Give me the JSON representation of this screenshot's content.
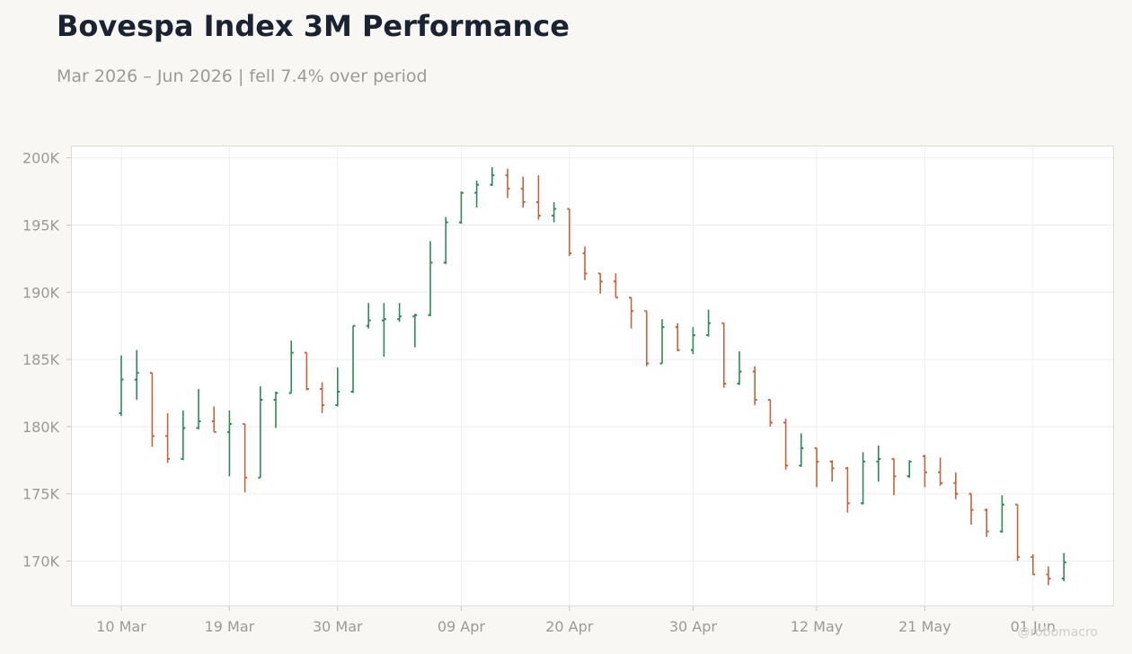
{
  "header": {
    "title": "Bovespa Index 3M Performance",
    "subtitle": "Mar 2026 – Jun 2026 | fell 7.4% over period"
  },
  "watermark": "@robomacro",
  "chart_data": {
    "type": "ohlc",
    "x_tick_labels": [
      "10 Mar",
      "19 Mar",
      "30 Mar",
      "09 Apr",
      "20 Apr",
      "30 Apr",
      "12 May",
      "21 May",
      "01 Jun"
    ],
    "y_tick_labels": [
      "170K",
      "175K",
      "180K",
      "185K",
      "190K",
      "195K",
      "200K"
    ],
    "y_ticks": [
      170000,
      175000,
      180000,
      185000,
      190000,
      195000,
      200000
    ],
    "ylim": [
      166500,
      201000
    ],
    "grid": true,
    "colors": {
      "up": "#2e8b57",
      "down": "#c8643c",
      "grid": "#eeeeec",
      "frame": "#dcdcd8"
    },
    "candles": [
      {
        "date": "10 Mar",
        "open": 181000,
        "high": 185300,
        "low": 180800,
        "close": 183500
      },
      {
        "date": "11 Mar",
        "open": 183500,
        "high": 185700,
        "low": 182000,
        "close": 184000
      },
      {
        "date": "12 Mar",
        "open": 184000,
        "high": 184000,
        "low": 178500,
        "close": 179300
      },
      {
        "date": "13 Mar",
        "open": 179300,
        "high": 181000,
        "low": 177300,
        "close": 177600
      },
      {
        "date": "16 Mar",
        "open": 177600,
        "high": 181200,
        "low": 177500,
        "close": 179900
      },
      {
        "date": "17 Mar",
        "open": 179900,
        "high": 182800,
        "low": 179800,
        "close": 180400
      },
      {
        "date": "18 Mar",
        "open": 180400,
        "high": 181500,
        "low": 179600,
        "close": 179600
      },
      {
        "date": "19 Mar",
        "open": 179600,
        "high": 181200,
        "low": 176300,
        "close": 180200
      },
      {
        "date": "20 Mar",
        "open": 180200,
        "high": 180200,
        "low": 175100,
        "close": 176200
      },
      {
        "date": "23 Mar",
        "open": 176200,
        "high": 183000,
        "low": 176200,
        "close": 182000
      },
      {
        "date": "24 Mar",
        "open": 182000,
        "high": 182600,
        "low": 179900,
        "close": 182500
      },
      {
        "date": "25 Mar",
        "open": 182500,
        "high": 186400,
        "low": 182500,
        "close": 185500
      },
      {
        "date": "26 Mar",
        "open": 185500,
        "high": 185500,
        "low": 182700,
        "close": 182800
      },
      {
        "date": "27 Mar",
        "open": 182800,
        "high": 183300,
        "low": 181000,
        "close": 181600
      },
      {
        "date": "30 Mar",
        "open": 181600,
        "high": 184400,
        "low": 181500,
        "close": 182600
      },
      {
        "date": "31 Mar",
        "open": 182600,
        "high": 187500,
        "low": 182500,
        "close": 187500
      },
      {
        "date": "01 Apr",
        "open": 187500,
        "high": 189200,
        "low": 187300,
        "close": 187900
      },
      {
        "date": "02 Apr",
        "open": 187900,
        "high": 189200,
        "low": 185200,
        "close": 188000
      },
      {
        "date": "03 Apr",
        "open": 188000,
        "high": 189200,
        "low": 187800,
        "close": 188200
      },
      {
        "date": "06 Apr",
        "open": 188200,
        "high": 188400,
        "low": 185900,
        "close": 188300
      },
      {
        "date": "07 Apr",
        "open": 188300,
        "high": 193800,
        "low": 188200,
        "close": 192200
      },
      {
        "date": "08 Apr",
        "open": 192200,
        "high": 195600,
        "low": 192100,
        "close": 195200
      },
      {
        "date": "09 Apr",
        "open": 195200,
        "high": 197500,
        "low": 195100,
        "close": 197400
      },
      {
        "date": "10 Apr",
        "open": 197400,
        "high": 198300,
        "low": 196300,
        "close": 198000
      },
      {
        "date": "13 Apr",
        "open": 198000,
        "high": 199300,
        "low": 197900,
        "close": 198700
      },
      {
        "date": "14 Apr",
        "open": 198700,
        "high": 199200,
        "low": 197000,
        "close": 197700
      },
      {
        "date": "15 Apr",
        "open": 197700,
        "high": 198600,
        "low": 196300,
        "close": 196700
      },
      {
        "date": "16 Apr",
        "open": 196700,
        "high": 198700,
        "low": 195400,
        "close": 195700
      },
      {
        "date": "17 Apr",
        "open": 195700,
        "high": 196700,
        "low": 195200,
        "close": 196200
      },
      {
        "date": "20 Apr",
        "open": 196200,
        "high": 196200,
        "low": 192700,
        "close": 192900
      },
      {
        "date": "21 Apr",
        "open": 192900,
        "high": 193400,
        "low": 190900,
        "close": 191400
      },
      {
        "date": "22 Apr",
        "open": 191400,
        "high": 191400,
        "low": 189900,
        "close": 190800
      },
      {
        "date": "23 Apr",
        "open": 190800,
        "high": 191400,
        "low": 189600,
        "close": 189600
      },
      {
        "date": "24 Apr",
        "open": 189600,
        "high": 189600,
        "low": 187300,
        "close": 188600
      },
      {
        "date": "27 Apr",
        "open": 188600,
        "high": 188600,
        "low": 184500,
        "close": 184700
      },
      {
        "date": "28 Apr",
        "open": 184700,
        "high": 188000,
        "low": 184700,
        "close": 187400
      },
      {
        "date": "29 Apr",
        "open": 187400,
        "high": 187700,
        "low": 185600,
        "close": 185700
      },
      {
        "date": "30 Apr",
        "open": 185700,
        "high": 187400,
        "low": 185400,
        "close": 186800
      },
      {
        "date": "01 May",
        "open": 186800,
        "high": 188700,
        "low": 186700,
        "close": 187700
      },
      {
        "date": "04 May",
        "open": 187700,
        "high": 187700,
        "low": 182900,
        "close": 183200
      },
      {
        "date": "05 May",
        "open": 183200,
        "high": 185600,
        "low": 183100,
        "close": 184100
      },
      {
        "date": "06 May",
        "open": 184100,
        "high": 184500,
        "low": 181600,
        "close": 182000
      },
      {
        "date": "07 May",
        "open": 182000,
        "high": 182000,
        "low": 180000,
        "close": 180300
      },
      {
        "date": "08 May",
        "open": 180300,
        "high": 180600,
        "low": 176800,
        "close": 177100
      },
      {
        "date": "11 May",
        "open": 177100,
        "high": 179500,
        "low": 177000,
        "close": 178400
      },
      {
        "date": "12 May",
        "open": 178400,
        "high": 178400,
        "low": 175500,
        "close": 177400
      },
      {
        "date": "13 May",
        "open": 177400,
        "high": 177500,
        "low": 175900,
        "close": 176900
      },
      {
        "date": "14 May",
        "open": 176900,
        "high": 177000,
        "low": 173600,
        "close": 174300
      },
      {
        "date": "15 May",
        "open": 174300,
        "high": 178100,
        "low": 174200,
        "close": 177400
      },
      {
        "date": "18 May",
        "open": 177400,
        "high": 178600,
        "low": 175900,
        "close": 177600
      },
      {
        "date": "19 May",
        "open": 177600,
        "high": 177600,
        "low": 174900,
        "close": 176300
      },
      {
        "date": "20 May",
        "open": 176300,
        "high": 177500,
        "low": 176200,
        "close": 177400
      },
      {
        "date": "21 May",
        "open": 177800,
        "high": 177900,
        "low": 175500,
        "close": 176600
      },
      {
        "date": "22 May",
        "open": 176600,
        "high": 177700,
        "low": 175600,
        "close": 175800
      },
      {
        "date": "25 May",
        "open": 175800,
        "high": 176600,
        "low": 174600,
        "close": 175000
      },
      {
        "date": "26 May",
        "open": 175000,
        "high": 175000,
        "low": 172700,
        "close": 173800
      },
      {
        "date": "27 May",
        "open": 173800,
        "high": 173900,
        "low": 171800,
        "close": 172200
      },
      {
        "date": "28 May",
        "open": 172200,
        "high": 174900,
        "low": 172100,
        "close": 174200
      },
      {
        "date": "29 May",
        "open": 174200,
        "high": 174200,
        "low": 170000,
        "close": 170300
      },
      {
        "date": "01 Jun",
        "open": 170300,
        "high": 170500,
        "low": 169000,
        "close": 169000
      },
      {
        "date": "02 Jun",
        "open": 169000,
        "high": 169600,
        "low": 168200,
        "close": 168700
      },
      {
        "date": "03 Jun",
        "open": 168700,
        "high": 170600,
        "low": 168500,
        "close": 169900
      }
    ]
  }
}
